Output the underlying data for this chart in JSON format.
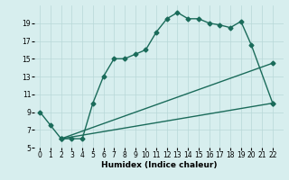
{
  "line1_x": [
    0,
    1,
    2,
    3,
    4,
    5,
    6,
    7,
    8,
    9,
    10,
    11,
    12,
    13,
    14,
    15,
    16,
    17,
    18,
    19,
    20,
    22
  ],
  "line1_y": [
    9.0,
    7.5,
    6.0,
    6.0,
    6.0,
    10.0,
    13.0,
    15.0,
    15.0,
    15.5,
    16.0,
    18.0,
    19.5,
    20.2,
    19.5,
    19.5,
    19.0,
    18.8,
    18.5,
    19.2,
    16.5,
    10.0
  ],
  "line2_x": [
    2,
    22
  ],
  "line2_y": [
    6.0,
    14.5
  ],
  "line3_x": [
    2,
    22
  ],
  "line3_y": [
    6.0,
    10.0
  ],
  "line_color": "#1a6b5a",
  "bg_color": "#d7eeee",
  "grid_color": "#b8d8d8",
  "xlabel": "Humidex (Indice chaleur)",
  "xlim": [
    -0.5,
    23
  ],
  "ylim": [
    5,
    21
  ],
  "xticks": [
    0,
    1,
    2,
    3,
    4,
    5,
    6,
    7,
    8,
    9,
    10,
    11,
    12,
    13,
    14,
    15,
    16,
    17,
    18,
    19,
    20,
    21,
    22
  ],
  "yticks": [
    5,
    7,
    9,
    11,
    13,
    15,
    17,
    19
  ],
  "xlabel_fontsize": 6.5,
  "tick_fontsize": 5.5,
  "marker": "D",
  "markersize": 2.5,
  "linewidth": 1.0
}
